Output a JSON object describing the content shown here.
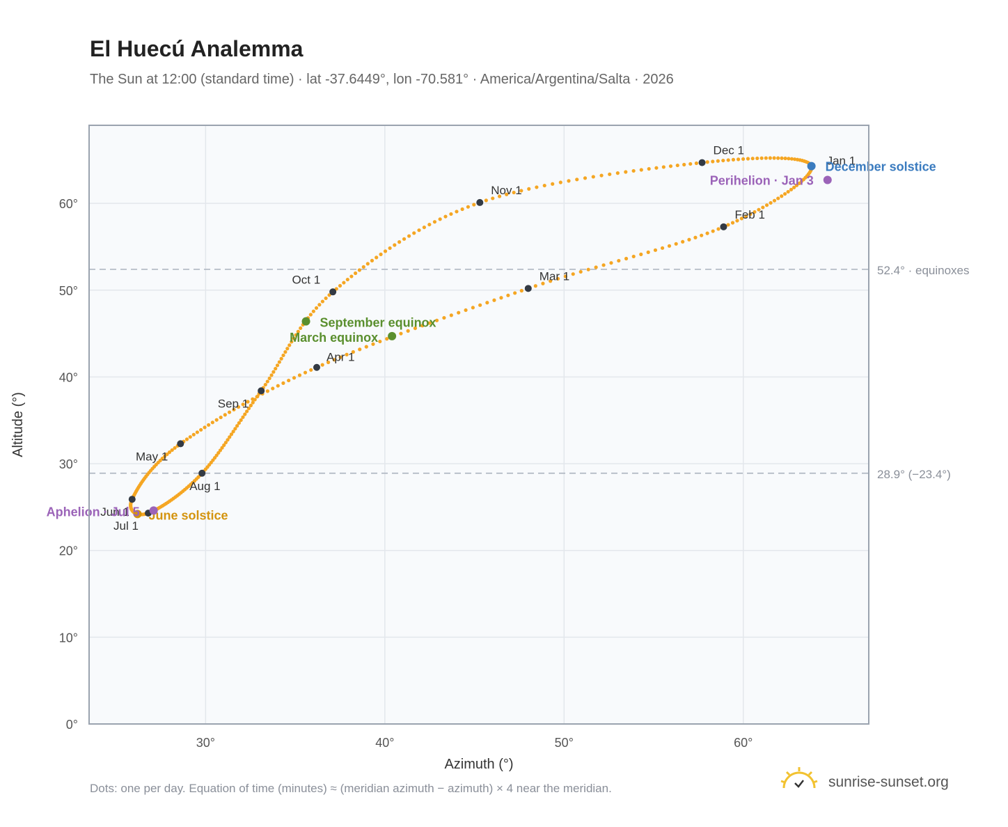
{
  "title": "El Huecú Analemma",
  "subtitle": "The Sun at 12:00 (standard time) · lat -37.6449°, lon -70.581° · America/Argentina/Salta · 2026",
  "footnote": "Dots: one per day. Equation of time (minutes) ≈ (meridian azimuth − azimuth) × 4 near the meridian.",
  "brand": "sunrise-sunset.org",
  "colors": {
    "curve": "#f5a623",
    "month_dot": "#333a44",
    "equinox": "#5a8f2e",
    "december_solstice": "#3a7bbf",
    "june_solstice": "#d4940f",
    "apsis": "#9b63b8",
    "plot_bg": "#f8fafc",
    "grid": "#e3e7ec",
    "ref_line": "#b5bcc6"
  },
  "chart_data": {
    "type": "scatter",
    "xlabel": "Azimuth (°)",
    "ylabel": "Altitude (°)",
    "xlim": [
      23.5,
      67
    ],
    "ylim": [
      0,
      69
    ],
    "x_ticks": [
      30,
      40,
      50,
      60
    ],
    "x_tick_labels": [
      "30°",
      "40°",
      "50°",
      "60°"
    ],
    "y_ticks": [
      0,
      10,
      20,
      30,
      40,
      50,
      60
    ],
    "y_tick_labels": [
      "0°",
      "10°",
      "20°",
      "30°",
      "40°",
      "50°",
      "60°"
    ],
    "grid": true,
    "reference_lines": [
      {
        "y": 52.4,
        "label": "52.4° · equinoxes"
      },
      {
        "y": 28.9,
        "label": "28.9° (−23.4°)"
      }
    ],
    "months": [
      {
        "label": "Jan 1",
        "x": 63.8,
        "y": 64.3
      },
      {
        "label": "Feb 1",
        "x": 58.9,
        "y": 57.3
      },
      {
        "label": "Mar 1",
        "x": 48.0,
        "y": 50.2
      },
      {
        "label": "Apr 1",
        "x": 36.2,
        "y": 41.1
      },
      {
        "label": "May 1",
        "x": 28.6,
        "y": 32.3
      },
      {
        "label": "Jun 1",
        "x": 25.9,
        "y": 25.9
      },
      {
        "label": "Jul 1",
        "x": 26.8,
        "y": 24.3
      },
      {
        "label": "Aug 1",
        "x": 29.8,
        "y": 28.9
      },
      {
        "label": "Sep 1",
        "x": 33.1,
        "y": 38.4
      },
      {
        "label": "Oct 1",
        "x": 37.1,
        "y": 49.8
      },
      {
        "label": "Nov 1",
        "x": 45.3,
        "y": 60.1
      },
      {
        "label": "Dec 1",
        "x": 57.7,
        "y": 64.7
      }
    ],
    "events": [
      {
        "label": "December solstice",
        "x": 63.8,
        "y": 64.3,
        "color_key": "december_solstice"
      },
      {
        "label": "Perihelion · Jan 3",
        "x": 64.7,
        "y": 62.7,
        "color_key": "apsis"
      },
      {
        "label": "September equinox",
        "x": 35.6,
        "y": 46.4,
        "color_key": "equinox"
      },
      {
        "label": "March equinox",
        "x": 40.4,
        "y": 44.7,
        "color_key": "equinox"
      },
      {
        "label": "June solstice",
        "x": 26.2,
        "y": 24.2,
        "color_key": "june_solstice"
      },
      {
        "label": "Aphelion · Jul 5",
        "x": 27.1,
        "y": 24.6,
        "color_key": "apsis"
      }
    ]
  }
}
